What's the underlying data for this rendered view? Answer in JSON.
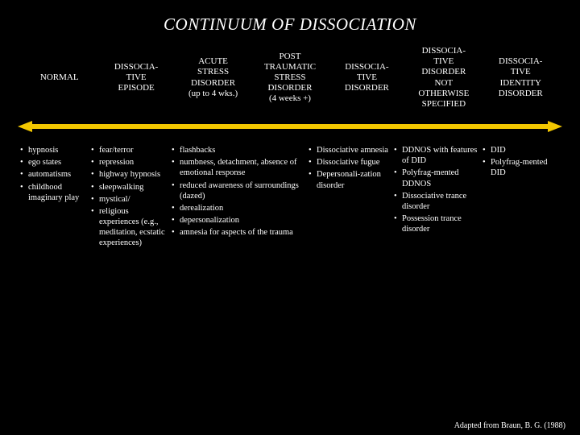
{
  "title": "CONTINUUM OF DISSOCIATION",
  "arrow": {
    "stroke_color": "#f2c700",
    "stroke_width": 6,
    "head_fill": "#f2c700"
  },
  "headers": [
    "NORMAL",
    "DISSOCIA-\nTIVE\nEPISODE",
    "ACUTE\nSTRESS\nDISORDER\n(up to 4 wks.)",
    "POST\nTRAUMATIC\nSTRESS\nDISORDER\n(4 weeks +)",
    "DISSOCIA-\nTIVE\nDISORDER",
    "DISSOCIA-\nTIVE\nDISORDER\nNOT\nOTHERWISE\nSPECIFIED",
    "DISSOCIA-\nTIVE\nIDENTITY\nDISORDER"
  ],
  "columns": {
    "c1": [
      "hypnosis",
      "ego states",
      "automatisms",
      "childhood imaginary play"
    ],
    "c2": [
      "fear/terror",
      "repression",
      "highway hypnosis",
      "sleepwalking",
      "mystical/",
      "religious experiences (e.g., meditation, ecstatic experiences)"
    ],
    "c3": [
      "flashbacks",
      "numbness, detachment, absence of emotional response",
      "reduced awareness of surroundings (dazed)",
      "derealization",
      "depersonalization",
      "amnesia for aspects of the trauma"
    ],
    "c4": [
      "Dissociative amnesia",
      "Dissociative fugue",
      "Depersonali-zation disorder"
    ],
    "c5": [
      "DDNOS with features of DID",
      "Polyfrag-mented DDNOS",
      "Dissociative trance disorder",
      "Possession trance disorder"
    ],
    "c6": [
      "DID",
      "Polyfrag-mented DID"
    ]
  },
  "credit": "Adapted from Braun, B. G. (1988)"
}
